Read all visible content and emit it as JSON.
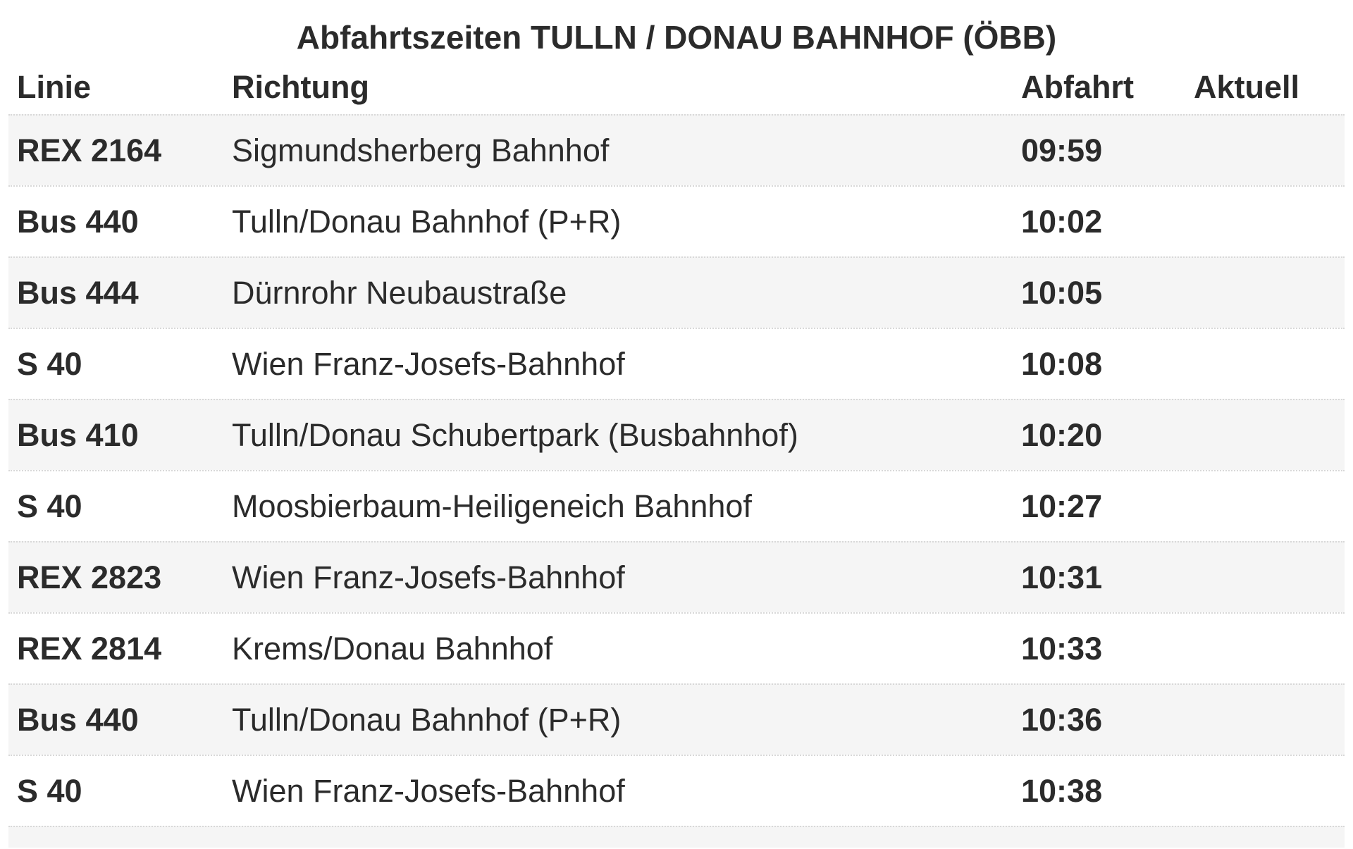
{
  "title": "Abfahrtszeiten TULLN / DONAU BAHNHOF (ÖBB)",
  "columns": {
    "line": "Linie",
    "direction": "Richtung",
    "departure": "Abfahrt",
    "actual": "Aktuell"
  },
  "colors": {
    "text": "#2b2b2b",
    "row_alt_background": "#f5f5f5",
    "divider": "#d8d8d8"
  },
  "departures": [
    {
      "line": "REX 2164",
      "direction": "Sigmundsherberg Bahnhof",
      "departure": "09:59",
      "actual": ""
    },
    {
      "line": "Bus 440",
      "direction": "Tulln/Donau Bahnhof (P+R)",
      "departure": "10:02",
      "actual": ""
    },
    {
      "line": "Bus 444",
      "direction": "Dürnrohr Neubaustraße",
      "departure": "10:05",
      "actual": ""
    },
    {
      "line": "S 40",
      "direction": "Wien Franz-Josefs-Bahnhof",
      "departure": "10:08",
      "actual": ""
    },
    {
      "line": "Bus 410",
      "direction": "Tulln/Donau Schubertpark (Busbahnhof)",
      "departure": "10:20",
      "actual": ""
    },
    {
      "line": "S 40",
      "direction": "Moosbierbaum-Heiligeneich Bahnhof",
      "departure": "10:27",
      "actual": ""
    },
    {
      "line": "REX 2823",
      "direction": "Wien Franz-Josefs-Bahnhof",
      "departure": "10:31",
      "actual": ""
    },
    {
      "line": "REX 2814",
      "direction": "Krems/Donau Bahnhof",
      "departure": "10:33",
      "actual": ""
    },
    {
      "line": "Bus 440",
      "direction": "Tulln/Donau Bahnhof (P+R)",
      "departure": "10:36",
      "actual": ""
    },
    {
      "line": "S 40",
      "direction": "Wien Franz-Josefs-Bahnhof",
      "departure": "10:38",
      "actual": ""
    }
  ]
}
